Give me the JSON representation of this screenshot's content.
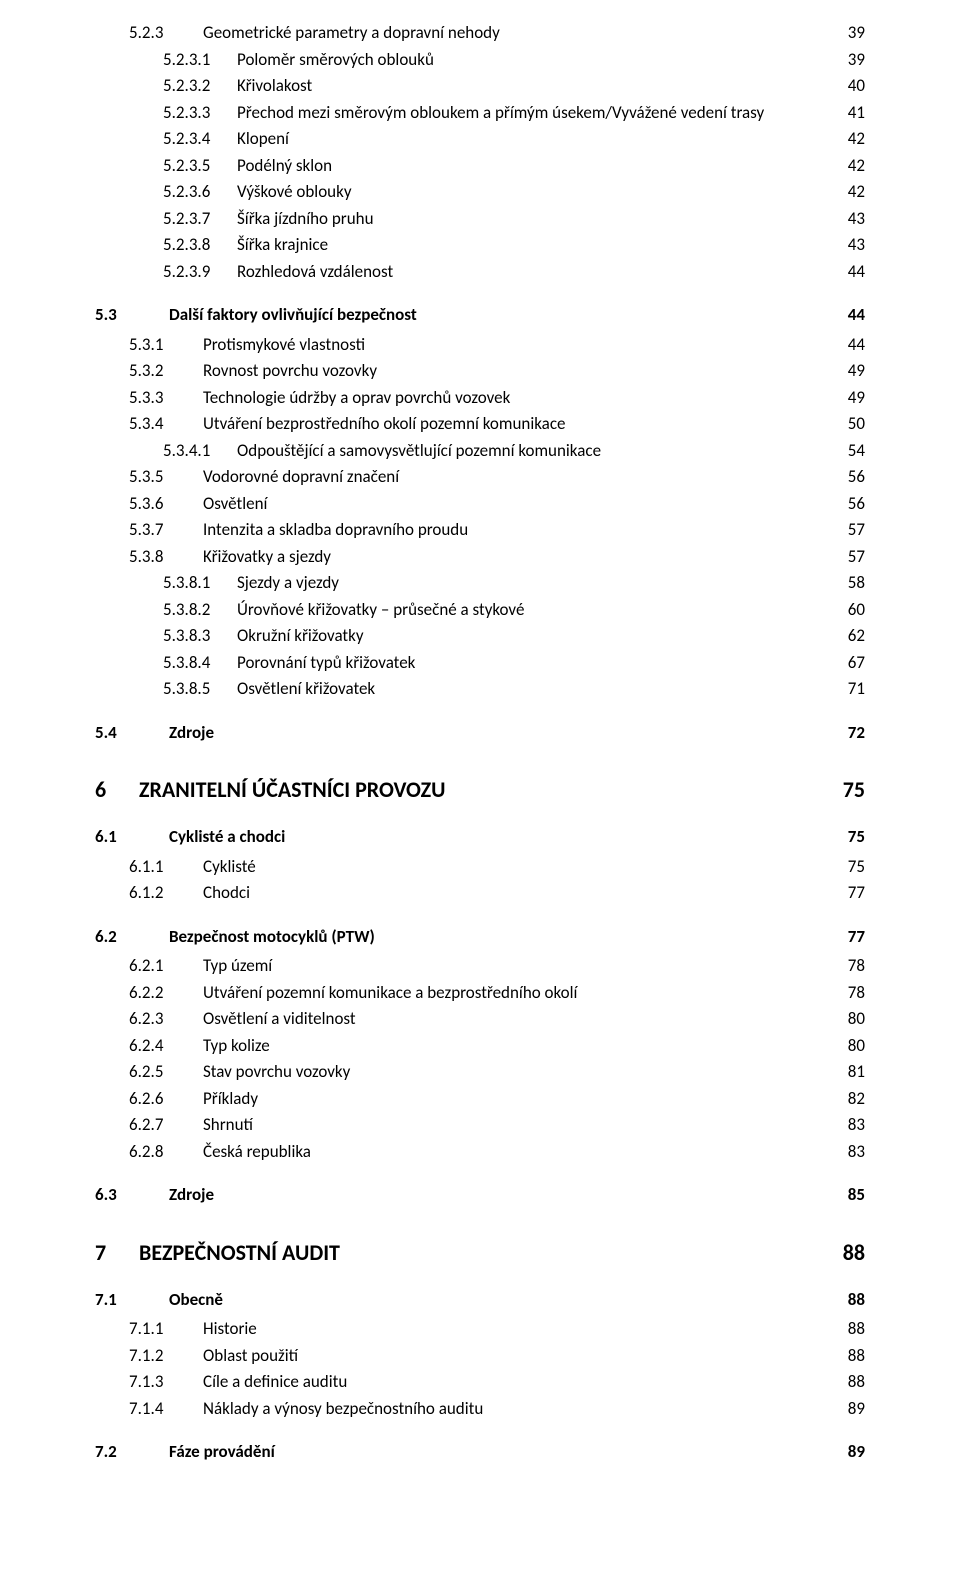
{
  "colors": {
    "text": "#000000",
    "background": "#ffffff"
  },
  "typography": {
    "body_fontsize_pt": 12,
    "h1_fontsize_pt": 16,
    "h2_fontsize_pt": 12,
    "font_family": "Calibri"
  },
  "toc": [
    {
      "level": 2,
      "num": "5.2.3",
      "title": "Geometrické parametry a dopravní nehody",
      "page": "39",
      "first": true
    },
    {
      "level": 3,
      "num": "5.2.3.1",
      "title": "Poloměr směrových oblouků",
      "page": "39"
    },
    {
      "level": 3,
      "num": "5.2.3.2",
      "title": "Křivolakost",
      "page": "40"
    },
    {
      "level": 3,
      "num": "5.2.3.3",
      "title": "Přechod mezi směrovým obloukem a přímým úsekem/Vyvážené vedení trasy",
      "page": "41"
    },
    {
      "level": 3,
      "num": "5.2.3.4",
      "title": "Klopení",
      "page": "42"
    },
    {
      "level": 3,
      "num": "5.2.3.5",
      "title": "Podélný sklon",
      "page": "42"
    },
    {
      "level": 3,
      "num": "5.2.3.6",
      "title": "Výškové oblouky",
      "page": "42"
    },
    {
      "level": 3,
      "num": "5.2.3.7",
      "title": "Šířka jízdního pruhu",
      "page": "43"
    },
    {
      "level": 3,
      "num": "5.2.3.8",
      "title": "Šířka krajnice",
      "page": "43"
    },
    {
      "level": 3,
      "num": "5.2.3.9",
      "title": "Rozhledová vzdálenost",
      "page": "44"
    },
    {
      "level": 1.5,
      "num": "5.3",
      "title": "Další faktory ovlivňující bezpečnost",
      "page": "44"
    },
    {
      "level": 2,
      "num": "5.3.1",
      "title": "Protismykové vlastnosti",
      "page": "44"
    },
    {
      "level": 2,
      "num": "5.3.2",
      "title": "Rovnost povrchu vozovky",
      "page": "49"
    },
    {
      "level": 2,
      "num": "5.3.3",
      "title": "Technologie údržby a oprav povrchů vozovek",
      "page": "49"
    },
    {
      "level": 2,
      "num": "5.3.4",
      "title": "Utváření bezprostředního okolí pozemní komunikace",
      "page": "50"
    },
    {
      "level": 3,
      "num": "5.3.4.1",
      "title": "Odpouštějící a samovysvětlující pozemní komunikace",
      "page": "54"
    },
    {
      "level": 2,
      "num": "5.3.5",
      "title": "Vodorovné dopravní značení",
      "page": "56"
    },
    {
      "level": 2,
      "num": "5.3.6",
      "title": "Osvětlení",
      "page": "56"
    },
    {
      "level": 2,
      "num": "5.3.7",
      "title": "Intenzita a skladba dopravního proudu",
      "page": "57"
    },
    {
      "level": 2,
      "num": "5.3.8",
      "title": "Křižovatky a sjezdy",
      "page": "57"
    },
    {
      "level": 3,
      "num": "5.3.8.1",
      "title": "Sjezdy a  vjezdy",
      "page": "58"
    },
    {
      "level": 3,
      "num": "5.3.8.2",
      "title": "Úrovňové křižovatky – průsečné a stykové",
      "page": "60"
    },
    {
      "level": 3,
      "num": "5.3.8.3",
      "title": "Okružní křižovatky",
      "page": "62"
    },
    {
      "level": 3,
      "num": "5.3.8.4",
      "title": "Porovnání typů křižovatek",
      "page": "67"
    },
    {
      "level": 3,
      "num": "5.3.8.5",
      "title": "Osvětlení křižovatek",
      "page": "71"
    },
    {
      "level": 1.5,
      "num": "5.4",
      "title": "Zdroje",
      "page": "72"
    },
    {
      "level": 1,
      "num": "6",
      "title": "ZRANITELNÍ ÚČASTNÍCI PROVOZU",
      "page": "75"
    },
    {
      "level": 1.5,
      "num": "6.1",
      "title": "Cyklisté a chodci",
      "page": "75"
    },
    {
      "level": 2,
      "num": "6.1.1",
      "title": "Cyklisté",
      "page": "75"
    },
    {
      "level": 2,
      "num": "6.1.2",
      "title": "Chodci",
      "page": "77"
    },
    {
      "level": 1.5,
      "num": "6.2",
      "title": "Bezpečnost motocyklů (PTW)",
      "page": "77"
    },
    {
      "level": 2,
      "num": "6.2.1",
      "title": "Typ území",
      "page": "78"
    },
    {
      "level": 2,
      "num": "6.2.2",
      "title": "Utváření pozemní komunikace a bezprostředního okolí",
      "page": "78"
    },
    {
      "level": 2,
      "num": "6.2.3",
      "title": "Osvětlení a viditelnost",
      "page": "80"
    },
    {
      "level": 2,
      "num": "6.2.4",
      "title": "Typ kolize",
      "page": "80"
    },
    {
      "level": 2,
      "num": "6.2.5",
      "title": "Stav povrchu vozovky",
      "page": "81"
    },
    {
      "level": 2,
      "num": "6.2.6",
      "title": "Příklady",
      "page": "82"
    },
    {
      "level": 2,
      "num": "6.2.7",
      "title": "Shrnutí",
      "page": "83"
    },
    {
      "level": 2,
      "num": "6.2.8",
      "title": "Česká republika",
      "page": "83"
    },
    {
      "level": 1.5,
      "num": "6.3",
      "title": "Zdroje",
      "page": "85"
    },
    {
      "level": 1,
      "num": "7",
      "title": "BEZPEČNOSTNÍ AUDIT",
      "page": "88"
    },
    {
      "level": 1.5,
      "num": "7.1",
      "title": "Obecně",
      "page": "88"
    },
    {
      "level": 2,
      "num": "7.1.1",
      "title": "Historie",
      "page": "88"
    },
    {
      "level": 2,
      "num": "7.1.2",
      "title": "Oblast použití",
      "page": "88"
    },
    {
      "level": 2,
      "num": "7.1.3",
      "title": "Cíle a definice auditu",
      "page": "88"
    },
    {
      "level": 2,
      "num": "7.1.4",
      "title": "Náklady a výnosy bezpečnostního auditu",
      "page": "89"
    },
    {
      "level": 1.5,
      "num": "7.2",
      "title": "Fáze provádění",
      "page": "89"
    }
  ]
}
